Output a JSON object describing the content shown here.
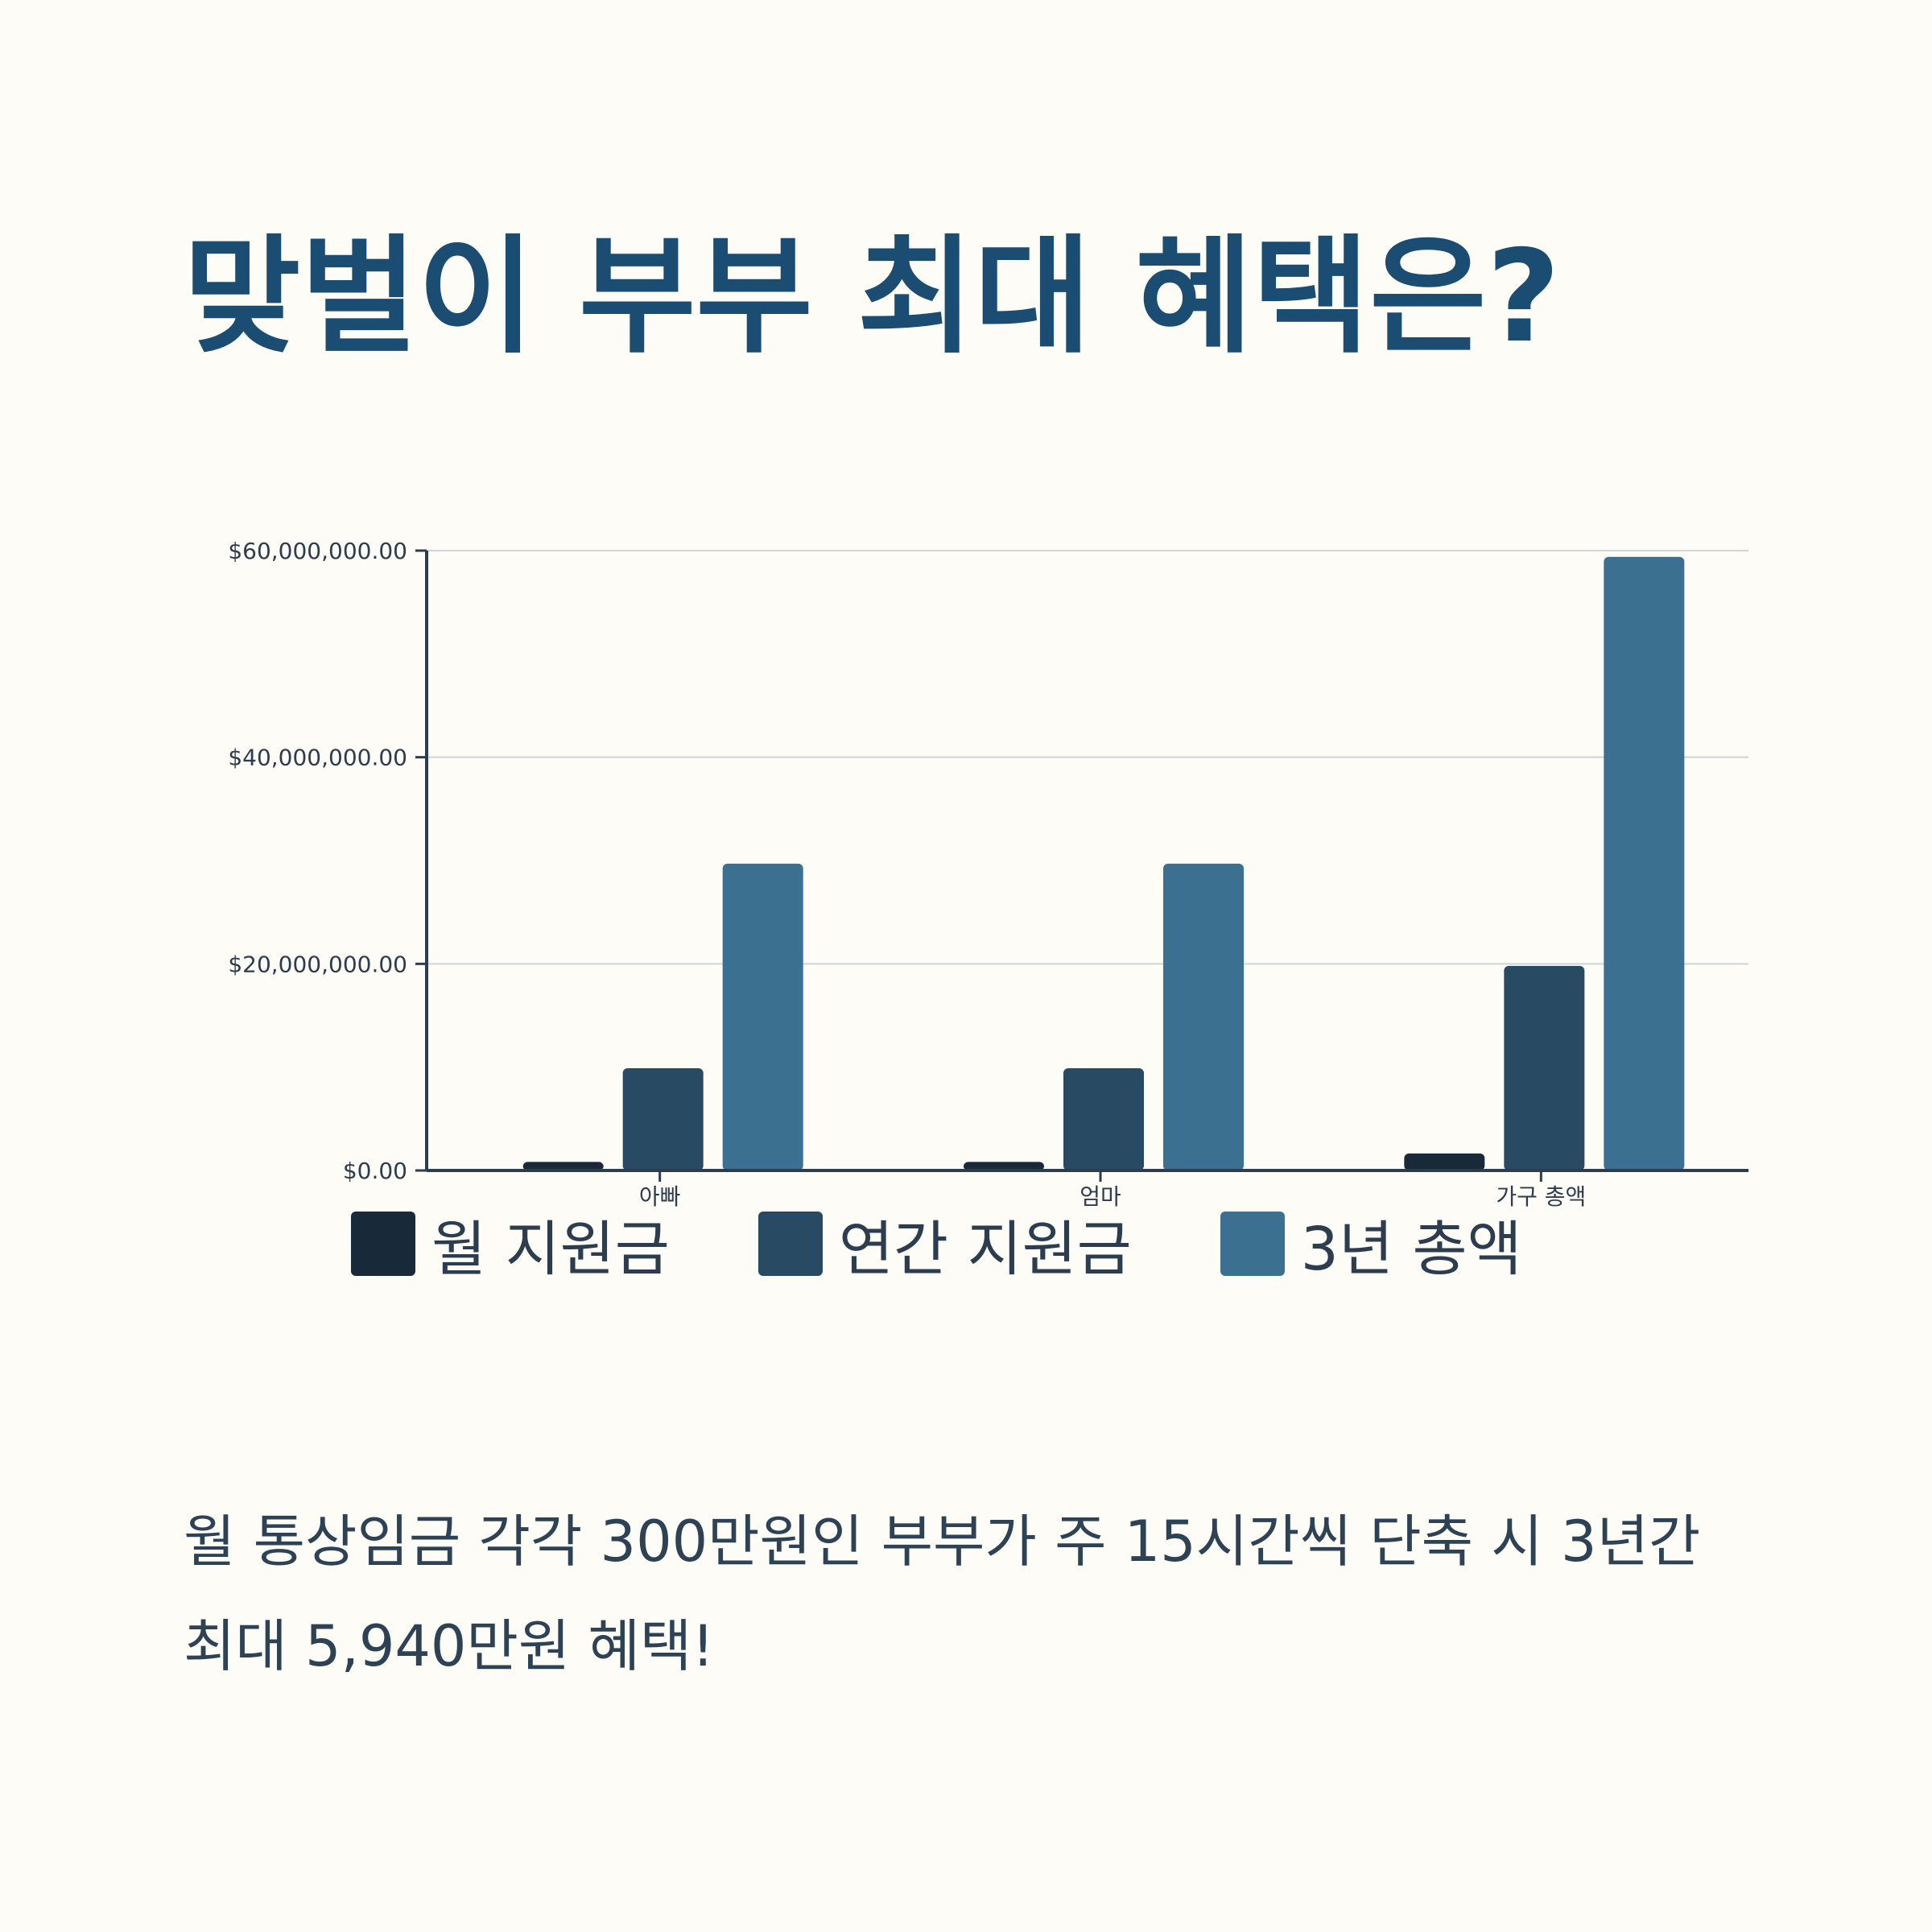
{
  "title": "맞벌이 부부 최대 혜택은?",
  "caption": "월 통상임금 각각 300만원인 부부가 주 15시간씩 단축 시 3년간 최대 5,940만원 혜택!",
  "chart_data": {
    "type": "bar",
    "categories": [
      "아빠",
      "엄마",
      "가구 총액"
    ],
    "series": [
      {
        "name": "월 지원금",
        "color": "#18293a",
        "values": [
          825000,
          825000,
          1650000
        ]
      },
      {
        "name": "연간 지원금",
        "color": "#294a63",
        "values": [
          9900000,
          9900000,
          19800000
        ]
      },
      {
        "name": "3년 총액",
        "color": "#3c7090",
        "values": [
          29700000,
          29700000,
          59400000
        ]
      }
    ],
    "ylim": [
      0,
      60000000
    ],
    "yticks": [
      0,
      20000000,
      40000000,
      60000000
    ],
    "ytick_labels": [
      "$0.00",
      "$20,000,000.00",
      "$40,000,000.00",
      "$60,000,000.00"
    ],
    "grid": true,
    "legend_position": "bottom"
  }
}
